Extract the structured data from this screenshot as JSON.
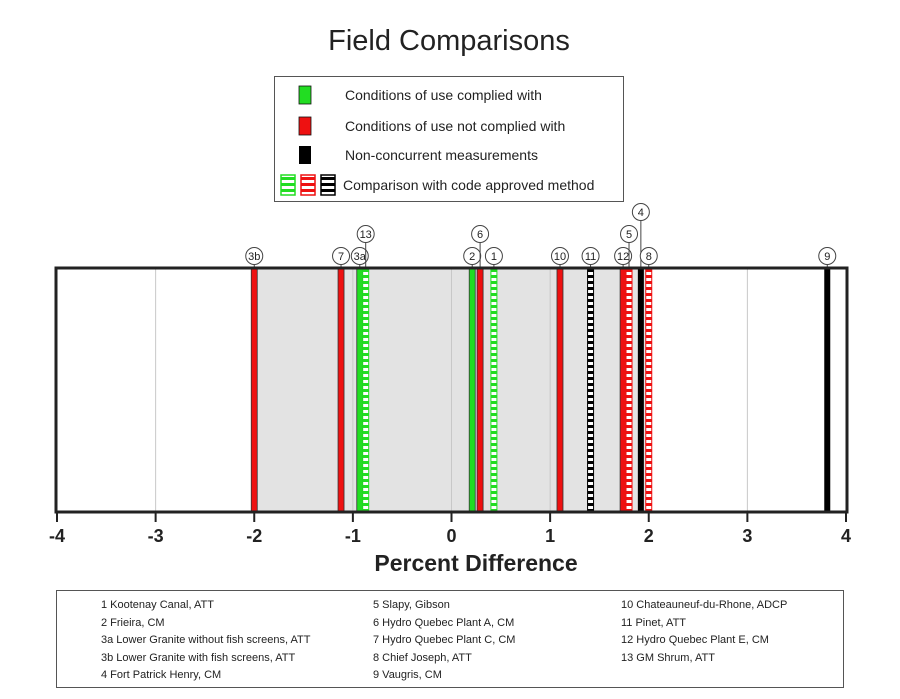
{
  "chart_data": {
    "type": "strip",
    "title": "Field Comparisons",
    "xlabel": "Percent Difference",
    "xlim": [
      -4,
      4
    ],
    "xticks": [
      "-4",
      "-3",
      "-2",
      "-1",
      "0",
      "1",
      "2",
      "3",
      "4"
    ],
    "shaded_range": [
      -2,
      2
    ],
    "colors": {
      "complied": "#22dd22",
      "not_complied": "#ee1111",
      "non_concurrent": "#000000",
      "shade": "#e3e3e3"
    },
    "legend": {
      "complied": "Conditions of use complied with",
      "not_complied": "Conditions of use not complied with",
      "non_concurrent": "Non-concurrent measurements",
      "code_approved": "Comparison with code approved method"
    },
    "points": [
      {
        "label": "3b",
        "x": -2.0,
        "category": "not_complied",
        "code_approved": false
      },
      {
        "label": "7",
        "x": -1.12,
        "category": "not_complied",
        "code_approved": false
      },
      {
        "label": "3a",
        "x": -0.93,
        "category": "complied",
        "code_approved": false
      },
      {
        "label": "13",
        "x": -0.87,
        "category": "complied",
        "code_approved": true
      },
      {
        "label": "2",
        "x": 0.21,
        "category": "complied",
        "code_approved": false
      },
      {
        "label": "6",
        "x": 0.29,
        "category": "not_complied",
        "code_approved": false
      },
      {
        "label": "1",
        "x": 0.43,
        "category": "complied",
        "code_approved": true
      },
      {
        "label": "10",
        "x": 1.1,
        "category": "not_complied",
        "code_approved": false
      },
      {
        "label": "11",
        "x": 1.41,
        "category": "non_concurrent",
        "code_approved": true
      },
      {
        "label": "12",
        "x": 1.74,
        "category": "not_complied",
        "code_approved": false
      },
      {
        "label": "5",
        "x": 1.8,
        "category": "not_complied",
        "code_approved": true
      },
      {
        "label": "4",
        "x": 1.92,
        "category": "non_concurrent",
        "code_approved": false
      },
      {
        "label": "8",
        "x": 2.0,
        "category": "not_complied",
        "code_approved": true
      },
      {
        "label": "9",
        "x": 3.81,
        "category": "non_concurrent",
        "code_approved": false
      }
    ]
  },
  "site_key": [
    [
      "1 Kootenay Canal, ATT",
      "2 Frieira, CM",
      "3a Lower Granite without fish screens, ATT",
      "3b Lower Granite with fish screens, ATT",
      "4 Fort Patrick Henry, CM"
    ],
    [
      "5 Slapy, Gibson",
      "6 Hydro Quebec Plant A, CM",
      "7 Hydro Quebec Plant C, CM",
      "8 Chief Joseph, ATT",
      "9 Vaugris, CM"
    ],
    [
      "10 Chateauneuf-du-Rhone, ADCP",
      "11 Pinet, ATT",
      "12 Hydro Quebec Plant E, CM",
      "13 GM Shrum, ATT"
    ]
  ]
}
